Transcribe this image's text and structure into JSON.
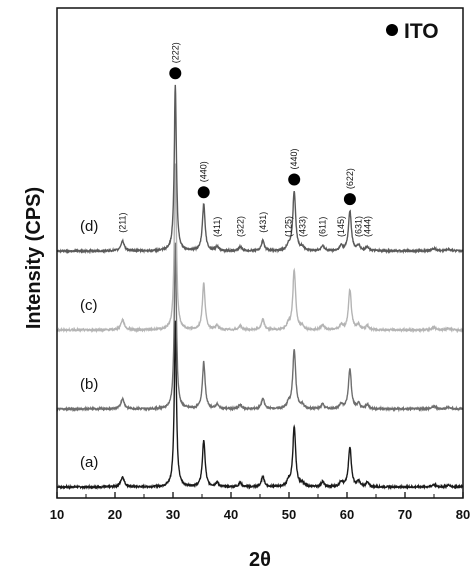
{
  "chart_data": {
    "type": "line",
    "xlabel": "2θ",
    "ylabel": "Intensity (CPS)",
    "xlim": [
      10,
      80
    ],
    "x_ticks": [
      "10",
      "20",
      "30",
      "40",
      "50",
      "60",
      "70",
      "80"
    ],
    "legend": {
      "marker": "filled-circle",
      "label": "ITO",
      "placement": "top-right"
    },
    "series": [
      {
        "name": "(a)",
        "color": "#1a1a1a",
        "baseline": 0.0
      },
      {
        "name": "(b)",
        "color": "#6e6e6e",
        "baseline": 1.0
      },
      {
        "name": "(c)",
        "color": "#b4b4b4",
        "baseline": 2.0
      },
      {
        "name": "(d)",
        "color": "#5a5a5a",
        "baseline": 3.0
      }
    ],
    "peaks": [
      {
        "x": 21.3,
        "height": 0.12,
        "width": 0.35,
        "label": "(211)"
      },
      {
        "x": 30.4,
        "height": 1.95,
        "width": 0.22,
        "label": "(222)",
        "ito": true
      },
      {
        "x": 35.3,
        "height": 0.55,
        "width": 0.28,
        "label": "(440)",
        "ito": true
      },
      {
        "x": 37.6,
        "height": 0.05,
        "width": 0.3,
        "label": "(411)"
      },
      {
        "x": 41.6,
        "height": 0.05,
        "width": 0.3,
        "label": "(322)"
      },
      {
        "x": 45.5,
        "height": 0.12,
        "width": 0.3,
        "label": "(431)"
      },
      {
        "x": 49.9,
        "height": 0.06,
        "width": 0.3,
        "label": "(125)"
      },
      {
        "x": 50.9,
        "height": 0.7,
        "width": 0.3,
        "label": "(440)",
        "ito": true
      },
      {
        "x": 52.3,
        "height": 0.04,
        "width": 0.3,
        "label": "(433)"
      },
      {
        "x": 55.8,
        "height": 0.06,
        "width": 0.3,
        "label": "(611)"
      },
      {
        "x": 59.0,
        "height": 0.06,
        "width": 0.3,
        "label": "(145)"
      },
      {
        "x": 60.5,
        "height": 0.47,
        "width": 0.3,
        "label": "(622)",
        "ito": true
      },
      {
        "x": 62.0,
        "height": 0.06,
        "width": 0.3,
        "label": "(631)"
      },
      {
        "x": 63.5,
        "height": 0.05,
        "width": 0.3,
        "label": "(444)"
      },
      {
        "x": 75.0,
        "height": 0.03,
        "width": 0.4,
        "label": ""
      },
      {
        "x": 77.5,
        "height": 0.02,
        "width": 0.4,
        "label": ""
      }
    ]
  }
}
